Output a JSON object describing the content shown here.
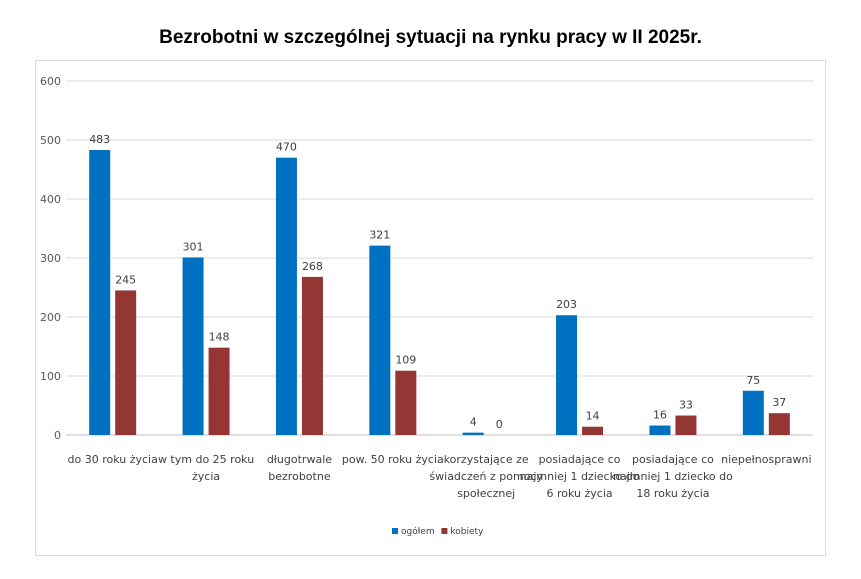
{
  "chart_data": {
    "type": "bar",
    "title": "Bezrobotni w szczególnej sytuacji na rynku pracy w II 2025r.",
    "xlabel": "",
    "ylabel": "",
    "ylim": [
      0,
      600
    ],
    "yticks": [
      0,
      100,
      200,
      300,
      400,
      500,
      600
    ],
    "grid": true,
    "legend": "bottom",
    "categories": [
      [
        "do 30 roku życia"
      ],
      [
        "w tym do 25 roku",
        "życia"
      ],
      [
        "długotrwale",
        "bezrobotne"
      ],
      [
        "pow. 50 roku życia"
      ],
      [
        "korzystające ze",
        "świadczeń z pomocy",
        "społecznej"
      ],
      [
        "posiadające co",
        "najmniej 1 dziecko do",
        "6 roku życia"
      ],
      [
        "posiadające co",
        "najmniej 1 dziecko do",
        "18 roku życia"
      ],
      [
        "niepełnosprawni"
      ]
    ],
    "series": [
      {
        "name": "ogółem",
        "color": "#0070c0",
        "values": [
          483,
          301,
          470,
          321,
          4,
          203,
          16,
          75
        ]
      },
      {
        "name": "kobiety",
        "color": "#943634",
        "values": [
          245,
          148,
          268,
          109,
          0,
          14,
          33,
          37
        ]
      }
    ]
  }
}
